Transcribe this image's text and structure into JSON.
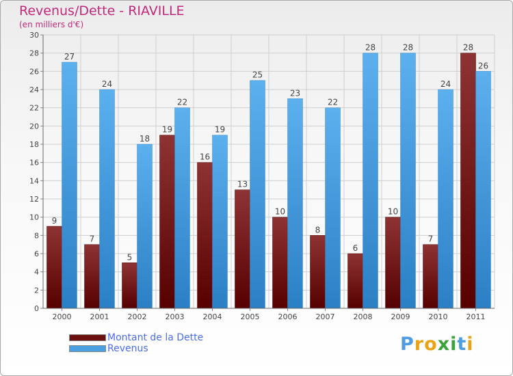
{
  "header": {
    "title": "Revenus/Dette - RIAVILLE",
    "subtitle": "(en milliers d'€)"
  },
  "chart_data": {
    "type": "bar",
    "categories": [
      "2000",
      "2001",
      "2002",
      "2003",
      "2004",
      "2005",
      "2006",
      "2007",
      "2008",
      "2009",
      "2010",
      "2011"
    ],
    "series": [
      {
        "name": "Montant de la Dette",
        "values": [
          9,
          7,
          5,
          19,
          16,
          13,
          10,
          8,
          6,
          10,
          7,
          28
        ],
        "color": "#7a1a1a"
      },
      {
        "name": "Revenus",
        "values": [
          27,
          24,
          18,
          22,
          19,
          25,
          23,
          22,
          28,
          28,
          24,
          26
        ],
        "color": "#4aa0e0"
      }
    ],
    "ylim": [
      0,
      30
    ],
    "y_ticks": [
      0,
      2,
      4,
      6,
      8,
      10,
      12,
      14,
      16,
      18,
      20,
      22,
      24,
      26,
      28,
      30
    ],
    "grid": true,
    "legend_position": "bottom-left"
  },
  "brand": {
    "name": "Proxiti",
    "letters": [
      "P",
      "r",
      "o",
      "x",
      "i",
      "t",
      "i"
    ],
    "colors": [
      "#4d9de0",
      "#e8a317",
      "#e8a317",
      "#3ba33b",
      "#3ba33b",
      "#4d9de0",
      "#e8a317"
    ]
  }
}
